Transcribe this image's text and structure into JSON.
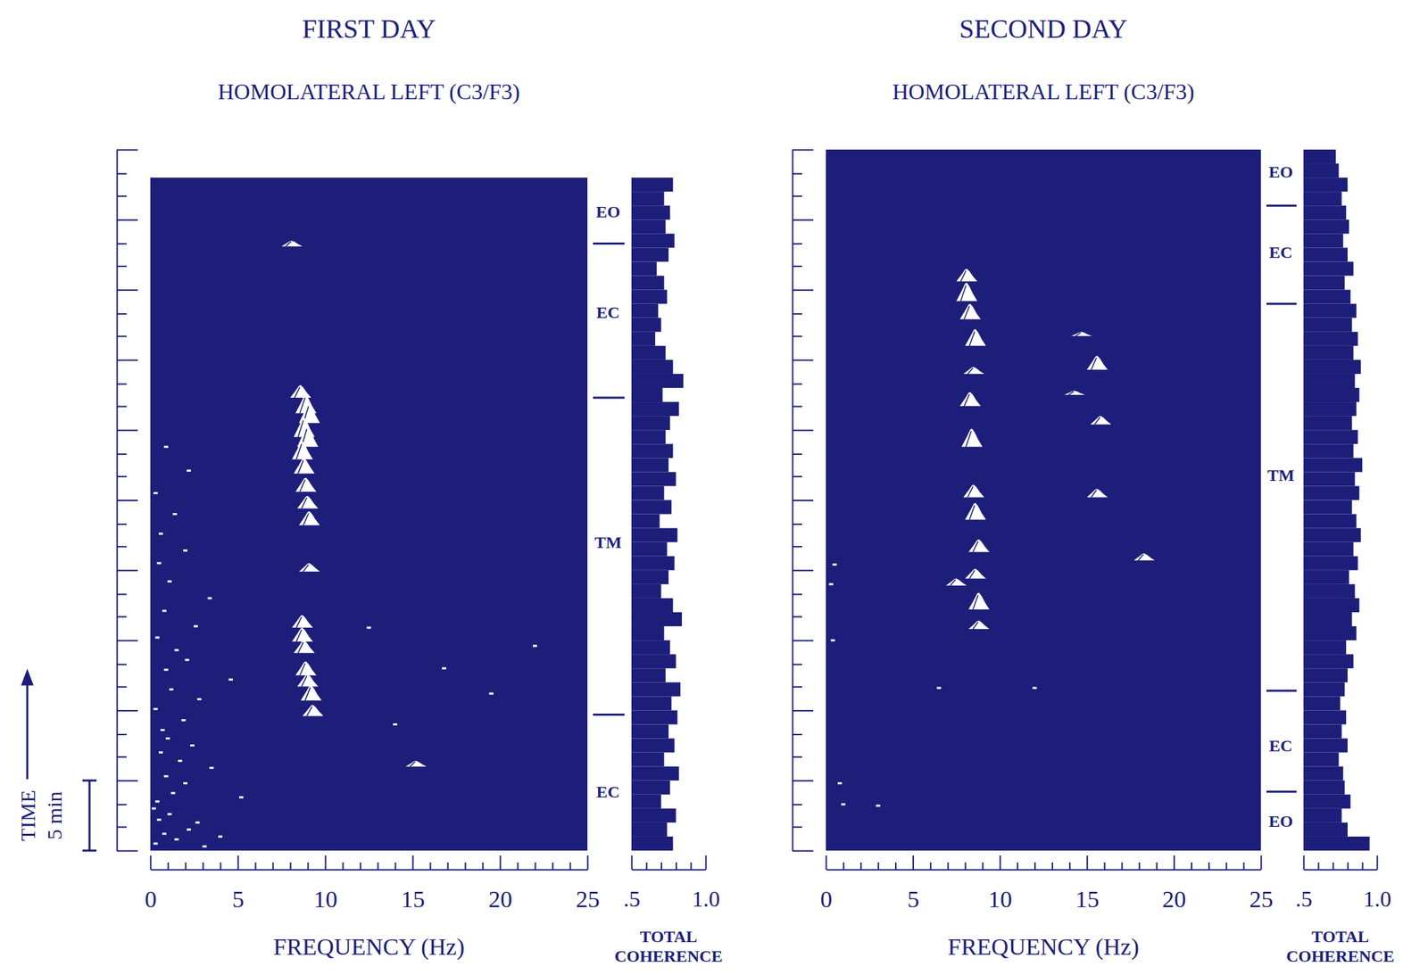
{
  "chart_data": [
    {
      "type": "spectral_coherence",
      "title": "FIRST DAY",
      "subtitle": "HOMOLATERAL LEFT (C3/F3)",
      "x_label": "FREQUENCY (Hz)",
      "xlim": [
        0,
        25
      ],
      "xticks": [
        0,
        5,
        10,
        15,
        20,
        25
      ],
      "xminor_ticks": [
        1,
        2,
        3,
        4,
        6,
        7,
        8,
        9,
        11,
        12,
        13,
        14,
        16,
        17,
        18,
        19,
        21,
        22,
        23,
        24
      ],
      "ylim": [
        0,
        50
      ],
      "yticks": [
        0,
        5,
        10,
        15,
        20,
        25,
        30,
        35,
        40,
        45,
        50
      ],
      "yminor_ticks": [
        1.7,
        3.3,
        6.7,
        8.3,
        11.7,
        13.3,
        16.7,
        18.3,
        21.7,
        23.3,
        26.7,
        28.3,
        31.7,
        33.3,
        36.7,
        38.3,
        41.7,
        43.3,
        46.7,
        48.3
      ],
      "tick_labels": "x",
      "record": [
        0,
        48
      ],
      "peaks": {
        "x": [
          8.1,
          8.6,
          8.9,
          9.1,
          8.8,
          9.0,
          8.7,
          8.8,
          8.9,
          9.0,
          9.1,
          9.1,
          8.7,
          8.7,
          8.8,
          8.9,
          9.0,
          9.2,
          9.3,
          15.2
        ],
        "y": [
          43.1,
          32.3,
          31.2,
          30.5,
          29.5,
          28.8,
          27.9,
          26.9,
          25.6,
          24.4,
          23.2,
          19.9,
          15.9,
          14.9,
          14.1,
          12.5,
          11.7,
          10.7,
          9.6,
          6.0
        ],
        "height": [
          0.4,
          0.9,
          1.3,
          1.4,
          1.4,
          1.5,
          1.3,
          1.1,
          1.0,
          0.9,
          1.0,
          0.6,
          0.9,
          1.0,
          0.9,
          1.0,
          0.9,
          1.1,
          0.8,
          0.4
        ]
      },
      "noise": {
        "x": [
          0.3,
          0.8,
          1.5,
          2.2,
          3.1,
          0.5,
          1.1,
          2.7,
          4.0,
          0.2,
          0.4,
          1.3,
          2.0,
          0.9,
          3.5,
          1.7,
          0.6,
          2.4,
          5.2,
          1.0,
          0.7,
          1.9,
          0.3,
          2.8,
          1.2,
          4.6,
          0.9,
          2.1,
          1.5,
          0.4,
          2.6,
          0.8,
          3.4,
          1.1,
          0.5,
          2.0,
          0.6,
          1.4,
          0.3,
          2.2,
          0.9,
          12.5,
          16.8,
          19.5,
          22.0,
          14.0
        ],
        "y": [
          0.5,
          1.2,
          0.8,
          1.5,
          0.3,
          2.2,
          2.6,
          2.0,
          1.0,
          3.0,
          3.5,
          4.1,
          4.8,
          5.3,
          5.9,
          6.4,
          7.0,
          7.5,
          3.8,
          8.0,
          8.6,
          9.3,
          10.1,
          10.8,
          11.5,
          12.2,
          12.9,
          13.6,
          14.3,
          15.2,
          16.0,
          17.1,
          18.0,
          19.2,
          20.5,
          21.4,
          22.6,
          24.0,
          25.5,
          27.1,
          28.8,
          15.9,
          13.0,
          11.2,
          14.6,
          9.0
        ]
      },
      "conditions": {
        "labels": [
          "EC",
          "TM",
          "EC",
          "EO"
        ],
        "y": [
          4.2,
          22.0,
          38.4,
          45.6
        ],
        "boundaries": [
          9.7,
          32.3,
          43.3
        ]
      },
      "coherence": {
        "type": "bar",
        "orientation": "horizontal",
        "label": "TOTAL COHERENCE",
        "xlim": [
          0.5,
          1.0
        ],
        "xticks": [
          {
            "value": 0.5,
            "label": ".5"
          },
          {
            "value": 1.0,
            "label": "1.0"
          }
        ],
        "xminor_ticks": [
          0.6,
          0.7,
          0.8,
          0.9
        ],
        "bins": [
          0,
          1,
          2,
          3,
          4,
          5,
          6,
          7,
          8,
          9,
          10,
          11,
          12,
          13,
          14,
          15,
          16,
          17,
          18,
          19,
          20,
          21,
          22,
          23,
          24,
          25,
          26,
          27,
          28,
          29,
          30,
          31,
          32,
          33,
          34,
          35,
          36,
          37,
          38,
          39,
          40,
          41,
          42,
          43,
          44,
          45,
          46,
          47,
          48
        ],
        "values": [
          0.78,
          0.74,
          0.8,
          0.7,
          0.76,
          0.82,
          0.72,
          0.79,
          0.75,
          0.81,
          0.77,
          0.83,
          0.73,
          0.8,
          0.76,
          0.72,
          0.84,
          0.78,
          0.7,
          0.75,
          0.79,
          0.74,
          0.81,
          0.69,
          0.77,
          0.72,
          0.8,
          0.75,
          0.78,
          0.73,
          0.76,
          0.82,
          0.71,
          0.85,
          0.78,
          0.73,
          0.66,
          0.7,
          0.68,
          0.74,
          0.72,
          0.67,
          0.75,
          0.79,
          0.73,
          0.76,
          0.72,
          0.78
        ]
      }
    },
    {
      "type": "spectral_coherence",
      "title": "SECOND DAY",
      "subtitle": "HOMOLATERAL LEFT (C3/F3)",
      "x_label": "FREQUENCY (Hz)",
      "xlim": [
        0,
        25
      ],
      "xticks": [
        0,
        5,
        10,
        15,
        20,
        25
      ],
      "xminor_ticks": [
        1,
        2,
        3,
        4,
        6,
        7,
        8,
        9,
        11,
        12,
        13,
        14,
        16,
        17,
        18,
        19,
        21,
        22,
        23,
        24
      ],
      "ylim": [
        0,
        50
      ],
      "yticks": [
        0,
        5,
        10,
        15,
        20,
        25,
        30,
        35,
        40,
        45,
        50
      ],
      "yminor_ticks": [
        1.7,
        3.3,
        6.7,
        8.3,
        11.7,
        13.3,
        16.7,
        18.3,
        21.7,
        23.3,
        26.7,
        28.3,
        31.7,
        33.3,
        36.7,
        38.3,
        41.7,
        43.3,
        46.7,
        48.3
      ],
      "tick_labels": "x",
      "record": [
        0,
        50
      ],
      "peaks": {
        "x": [
          8.1,
          8.1,
          8.3,
          8.6,
          8.5,
          8.3,
          8.4,
          8.5,
          8.6,
          8.8,
          8.6,
          8.8,
          8.8,
          7.5,
          14.7,
          15.6,
          14.3,
          15.8,
          15.6,
          18.3
        ],
        "y": [
          40.6,
          39.2,
          37.9,
          36.0,
          34.0,
          31.7,
          28.8,
          25.2,
          23.6,
          21.3,
          19.4,
          17.2,
          15.8,
          18.9,
          36.7,
          34.3,
          32.5,
          30.4,
          25.2,
          20.7
        ],
        "height": [
          0.9,
          1.3,
          1.1,
          1.2,
          0.5,
          1.0,
          1.3,
          0.9,
          1.2,
          0.9,
          0.7,
          1.2,
          0.6,
          0.5,
          0.3,
          1.0,
          0.3,
          0.6,
          0.6,
          0.5
        ]
      },
      "noise": {
        "x": [
          0.3,
          0.8,
          0.5,
          12.0,
          1.0,
          3.0,
          6.5,
          0.4
        ],
        "y": [
          19.0,
          4.8,
          20.4,
          11.6,
          3.3,
          3.2,
          11.6,
          15.0
        ]
      },
      "conditions": {
        "labels": [
          "EO",
          "EC",
          "TM",
          "EC",
          "EO"
        ],
        "y": [
          2.1,
          7.5,
          26.8,
          42.7,
          48.4
        ],
        "boundaries": [
          4.2,
          11.4,
          39.0,
          46.0
        ]
      },
      "coherence": {
        "type": "bar",
        "orientation": "horizontal",
        "label": "TOTAL COHERENCE",
        "xlim": [
          0.5,
          1.0
        ],
        "xticks": [
          {
            "value": 0.5,
            "label": ".5"
          },
          {
            "value": 1.0,
            "label": "1.0"
          }
        ],
        "xminor_ticks": [
          0.6,
          0.7,
          0.8,
          0.9
        ],
        "bins": [
          0,
          1,
          2,
          3,
          4,
          5,
          6,
          7,
          8,
          9,
          10,
          11,
          12,
          13,
          14,
          15,
          16,
          17,
          18,
          19,
          20,
          21,
          22,
          23,
          24,
          25,
          26,
          27,
          28,
          29,
          30,
          31,
          32,
          33,
          34,
          35,
          36,
          37,
          38,
          39,
          40,
          41,
          42,
          43,
          44,
          45,
          46,
          47,
          48,
          49,
          50
        ],
        "values": [
          0.95,
          0.8,
          0.76,
          0.82,
          0.78,
          0.77,
          0.74,
          0.8,
          0.76,
          0.79,
          0.75,
          0.78,
          0.8,
          0.84,
          0.79,
          0.86,
          0.83,
          0.88,
          0.85,
          0.81,
          0.87,
          0.84,
          0.89,
          0.86,
          0.83,
          0.88,
          0.85,
          0.9,
          0.84,
          0.87,
          0.83,
          0.86,
          0.88,
          0.85,
          0.89,
          0.84,
          0.87,
          0.83,
          0.86,
          0.82,
          0.78,
          0.84,
          0.8,
          0.77,
          0.81,
          0.79,
          0.76,
          0.8,
          0.74,
          0.72
        ]
      }
    }
  ],
  "time_scale": {
    "label": "TIME",
    "value": 5,
    "value_label": "5 min"
  }
}
